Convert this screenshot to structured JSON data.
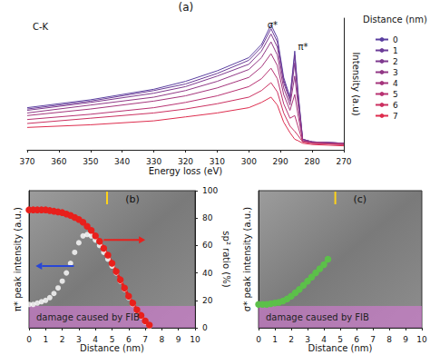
{
  "chart_data": [
    {
      "type": "line",
      "title": "(a)",
      "annotations": [
        "C-K",
        "σ*",
        "π*"
      ],
      "xlabel": "Energy loss (eV)",
      "ylabel": "Intensity (a.u)",
      "legend_title": "Distance (nm)",
      "legend": "right",
      "x": [
        270,
        280,
        283,
        284.5,
        285.5,
        287,
        289,
        291,
        293,
        296,
        300,
        310,
        320,
        330,
        350,
        370
      ],
      "xlim": [
        370,
        270
      ],
      "xticks": [
        370,
        360,
        350,
        340,
        330,
        320,
        310,
        300,
        290,
        280,
        270
      ],
      "ylim": [
        0,
        1
      ],
      "series": [
        {
          "name": "0",
          "color": "#5a3fa0",
          "values": [
            0.05,
            0.06,
            0.08,
            0.45,
            0.75,
            0.4,
            0.55,
            0.85,
            0.95,
            0.8,
            0.7,
            0.6,
            0.52,
            0.46,
            0.38,
            0.32
          ]
        },
        {
          "name": "1",
          "color": "#6c3c98",
          "values": [
            0.05,
            0.06,
            0.08,
            0.43,
            0.72,
            0.39,
            0.53,
            0.82,
            0.92,
            0.78,
            0.68,
            0.58,
            0.5,
            0.45,
            0.37,
            0.31
          ]
        },
        {
          "name": "2",
          "color": "#7f3a8f",
          "values": [
            0.05,
            0.06,
            0.08,
            0.4,
            0.66,
            0.37,
            0.51,
            0.78,
            0.88,
            0.75,
            0.65,
            0.56,
            0.48,
            0.43,
            0.36,
            0.3
          ]
        },
        {
          "name": "3",
          "color": "#923886",
          "values": [
            0.05,
            0.06,
            0.07,
            0.35,
            0.56,
            0.34,
            0.47,
            0.72,
            0.82,
            0.7,
            0.61,
            0.52,
            0.45,
            0.4,
            0.34,
            0.28
          ]
        },
        {
          "name": "4",
          "color": "#a5357c",
          "values": [
            0.04,
            0.05,
            0.07,
            0.27,
            0.42,
            0.3,
            0.42,
            0.64,
            0.73,
            0.63,
            0.55,
            0.47,
            0.41,
            0.37,
            0.31,
            0.26
          ]
        },
        {
          "name": "5",
          "color": "#b83272",
          "values": [
            0.04,
            0.05,
            0.06,
            0.18,
            0.26,
            0.24,
            0.35,
            0.54,
            0.62,
            0.54,
            0.48,
            0.41,
            0.36,
            0.32,
            0.27,
            0.23
          ]
        },
        {
          "name": "6",
          "color": "#cb3060",
          "values": [
            0.04,
            0.05,
            0.06,
            0.11,
            0.14,
            0.18,
            0.28,
            0.44,
            0.51,
            0.45,
            0.4,
            0.35,
            0.31,
            0.28,
            0.24,
            0.2
          ]
        },
        {
          "name": "7",
          "color": "#de2d4e",
          "values": [
            0.03,
            0.04,
            0.05,
            0.07,
            0.08,
            0.13,
            0.21,
            0.34,
            0.4,
            0.36,
            0.32,
            0.28,
            0.25,
            0.22,
            0.19,
            0.17
          ]
        }
      ]
    },
    {
      "type": "scatter",
      "title": "(b)",
      "xlabel": "Distance (nm)",
      "ylabel": "π* peak intensity (a.u.)",
      "y2label": "sp² ratio (%)",
      "annotations": [
        "damage caused by FIB"
      ],
      "x": [
        0,
        0.25,
        0.5,
        0.75,
        1,
        1.25,
        1.5,
        1.75,
        2,
        2.25,
        2.5,
        2.75,
        3,
        3.25,
        3.5,
        3.75,
        4,
        4.25,
        4.5,
        4.75,
        5,
        5.25,
        5.5,
        5.75,
        6,
        6.25,
        6.5,
        6.75,
        7,
        7.25
      ],
      "xlim": [
        0,
        10
      ],
      "xticks": [
        0,
        1,
        2,
        3,
        4,
        5,
        6,
        7,
        8,
        9,
        10
      ],
      "ylim": [
        0,
        1
      ],
      "y2lim": [
        0,
        100
      ],
      "y2ticks": [
        0,
        20,
        40,
        60,
        80,
        100
      ],
      "series": [
        {
          "type": "scatter",
          "marker": "emptyCircle",
          "color": "#2846d6",
          "values": [
            0.17,
            0.17,
            0.18,
            0.19,
            0.2,
            0.22,
            0.25,
            0.29,
            0.34,
            0.4,
            0.47,
            0.55,
            0.62,
            0.67,
            0.68,
            0.67,
            0.64,
            0.6,
            0.55,
            0.5,
            0.45,
            0.4,
            0.34,
            0.28,
            0.22,
            0.17,
            0.12,
            0.08,
            0.04,
            0.01
          ]
        },
        {
          "type": "line",
          "axis": "y2",
          "marker": "circle",
          "line_style": "solid",
          "color": "#e8201c",
          "values": [
            86,
            86,
            86,
            86,
            86,
            85.5,
            85,
            84.5,
            84,
            83,
            82,
            80.5,
            79,
            77,
            74,
            71,
            67,
            63,
            58,
            53,
            47,
            41,
            35,
            29,
            23,
            18,
            13,
            9,
            5,
            2
          ]
        }
      ]
    },
    {
      "type": "scatter",
      "title": "(c)",
      "xlabel": "Distance (nm)",
      "ylabel": "σ* peak intensity (a.u.)",
      "annotations": [
        "damage caused by FIB"
      ],
      "x": [
        0,
        0.25,
        0.5,
        0.75,
        1,
        1.25,
        1.5,
        1.75,
        2,
        2.25,
        2.5,
        2.75,
        3,
        3.25,
        3.5,
        3.75,
        4,
        4.25
      ],
      "xlim": [
        0,
        10
      ],
      "xticks": [
        0,
        1,
        2,
        3,
        4,
        5,
        6,
        7,
        8,
        9,
        10
      ],
      "ylim": [
        0,
        1
      ],
      "series": [
        {
          "type": "line",
          "marker": "circle",
          "line_style": "solid",
          "color": "#5cc04a",
          "values": [
            0.17,
            0.17,
            0.17,
            0.175,
            0.18,
            0.185,
            0.195,
            0.21,
            0.23,
            0.255,
            0.28,
            0.31,
            0.34,
            0.37,
            0.4,
            0.43,
            0.46,
            0.5
          ]
        }
      ]
    }
  ]
}
